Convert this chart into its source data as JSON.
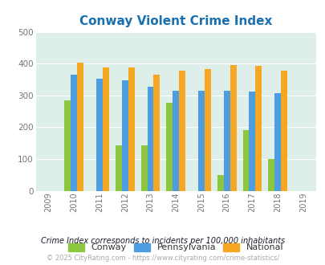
{
  "title": "Conway Violent Crime Index",
  "years": [
    2009,
    2010,
    2011,
    2012,
    2013,
    2014,
    2015,
    2016,
    2017,
    2018,
    2019
  ],
  "data_years": [
    2010,
    2011,
    2012,
    2013,
    2014,
    2015,
    2016,
    2017,
    2018
  ],
  "conway": [
    285,
    0,
    143,
    143,
    278,
    0,
    50,
    192,
    100
  ],
  "pennsylvania": [
    365,
    352,
    348,
    328,
    315,
    315,
    315,
    312,
    306
  ],
  "national": [
    404,
    387,
    387,
    366,
    377,
    383,
    396,
    394,
    379
  ],
  "conway_color": "#8dc63f",
  "pa_color": "#4d9de0",
  "national_color": "#f5a623",
  "bg_color": "#deeee9",
  "ylim": [
    0,
    500
  ],
  "yticks": [
    0,
    100,
    200,
    300,
    400,
    500
  ],
  "subtitle": "Crime Index corresponds to incidents per 100,000 inhabitants",
  "footer": "© 2025 CityRating.com - https://www.cityrating.com/crime-statistics/",
  "title_color": "#1a6faf",
  "subtitle_color": "#1a1a2e",
  "footer_color": "#aaaaaa",
  "footer_link_color": "#4da6e8"
}
